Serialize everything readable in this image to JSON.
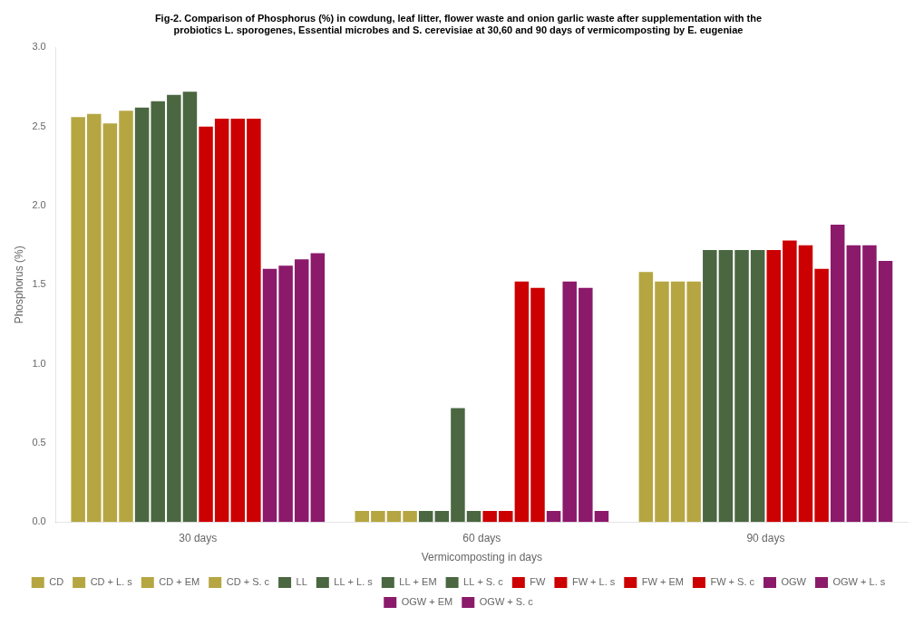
{
  "chart_data": {
    "type": "bar",
    "title": [
      "Fig-2. Comparison of Phosphorus (%) in cowdung, leaf litter, flower waste and onion garlic waste after supplementation with the",
      "probiotics L. sporogenes, Essential microbes and S. cerevisiae at 30,60 and 90 days of vermicomposting by E. eugeniae"
    ],
    "xlabel": "Vermicomposting in days",
    "ylabel": "Phosphorus (%)",
    "categories": [
      "30 days",
      "60 days",
      "90 days"
    ],
    "series": [
      {
        "name": "CD",
        "color": "#b5a642",
        "values": [
          2.56,
          0.07,
          1.58
        ]
      },
      {
        "name": "CD + L. s",
        "color": "#b5a642",
        "values": [
          2.58,
          0.07,
          1.52
        ]
      },
      {
        "name": "CD + EM",
        "color": "#b5a642",
        "values": [
          2.52,
          0.07,
          1.52
        ]
      },
      {
        "name": "CD + S. c",
        "color": "#b5a642",
        "values": [
          2.6,
          0.07,
          1.52
        ]
      },
      {
        "name": "LL",
        "color": "#4a6741",
        "values": [
          2.62,
          0.07,
          1.72
        ]
      },
      {
        "name": "LL + L. s",
        "color": "#4a6741",
        "values": [
          2.66,
          0.07,
          1.72
        ]
      },
      {
        "name": "LL + EM",
        "color": "#4a6741",
        "values": [
          2.7,
          0.72,
          1.72
        ]
      },
      {
        "name": "LL + S. c",
        "color": "#4a6741",
        "values": [
          2.72,
          0.07,
          1.72
        ]
      },
      {
        "name": "FW",
        "color": "#cc0000",
        "values": [
          2.5,
          0.07,
          1.72
        ]
      },
      {
        "name": "FW + L. s",
        "color": "#cc0000",
        "values": [
          2.55,
          0.07,
          1.78
        ]
      },
      {
        "name": "FW + EM",
        "color": "#cc0000",
        "values": [
          2.55,
          1.52,
          1.75
        ]
      },
      {
        "name": "FW + S. c",
        "color": "#cc0000",
        "values": [
          2.55,
          1.48,
          1.6
        ]
      },
      {
        "name": "OGW",
        "color": "#8b1a6b",
        "values": [
          1.6,
          0.07,
          1.88
        ]
      },
      {
        "name": "OGW + L. s",
        "color": "#8b1a6b",
        "values": [
          1.62,
          1.52,
          1.75
        ]
      },
      {
        "name": "OGW + EM",
        "color": "#8b1a6b",
        "values": [
          1.66,
          1.48,
          1.75
        ]
      },
      {
        "name": "OGW + S. c",
        "color": "#8b1a6b",
        "values": [
          1.7,
          0.07,
          1.65
        ]
      }
    ],
    "ylim": [
      0,
      3.0
    ],
    "yticks": [
      {
        "value": 0,
        "label": "0.0"
      },
      0.5,
      {
        "value": 1.0,
        "label": "1.0"
      },
      1.5,
      {
        "value": 2.0,
        "label": "2.0"
      },
      2.5,
      {
        "value": 3.0,
        "label": "3.0"
      }
    ],
    "grid": false,
    "legend": "bottom"
  }
}
